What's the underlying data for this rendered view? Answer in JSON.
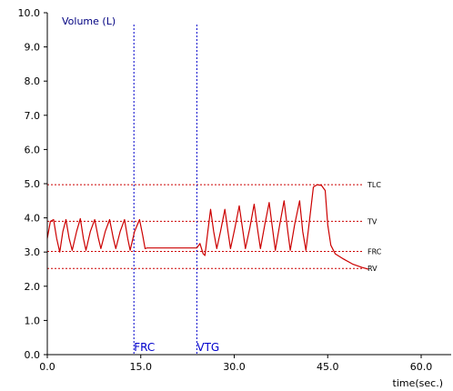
{
  "chart_data": {
    "type": "line",
    "title": "",
    "ylabel": "Volume (L)",
    "xlabel": "time(sec.)",
    "xlim": [
      0,
      65
    ],
    "ylim": [
      0,
      10
    ],
    "x_ticks": [
      "0.0",
      "15.0",
      "30.0",
      "45.0",
      "60.0"
    ],
    "x_tick_values": [
      0,
      15,
      30,
      45,
      60
    ],
    "y_ticks": [
      "0.0",
      "1.0",
      "2.0",
      "3.0",
      "4.0",
      "5.0",
      "6.0",
      "7.0",
      "8.0",
      "9.0",
      "10.0"
    ],
    "y_tick_values": [
      0,
      1,
      2,
      3,
      4,
      5,
      6,
      7,
      8,
      9,
      10
    ],
    "reference_lines": [
      {
        "label": "TLC",
        "y": 4.97
      },
      {
        "label": "TV",
        "y": 3.9
      },
      {
        "label": "FRC",
        "y": 3.02
      },
      {
        "label": "RV",
        "y": 2.52
      }
    ],
    "vertical_markers": [
      {
        "label": "FRC",
        "x": 13.9
      },
      {
        "label": "VTG",
        "x": 24.0
      }
    ],
    "series": [
      {
        "color": "#cc0000",
        "points": [
          [
            0.0,
            3.4
          ],
          [
            0.5,
            3.9
          ],
          [
            1.0,
            3.95
          ],
          [
            1.5,
            3.4
          ],
          [
            2.0,
            3.0
          ],
          [
            2.5,
            3.6
          ],
          [
            3.0,
            3.95
          ],
          [
            3.5,
            3.4
          ],
          [
            4.0,
            3.05
          ],
          [
            4.7,
            3.6
          ],
          [
            5.3,
            3.98
          ],
          [
            5.8,
            3.4
          ],
          [
            6.2,
            3.05
          ],
          [
            6.9,
            3.6
          ],
          [
            7.6,
            3.95
          ],
          [
            8.2,
            3.4
          ],
          [
            8.6,
            3.1
          ],
          [
            9.3,
            3.6
          ],
          [
            10.0,
            3.95
          ],
          [
            10.6,
            3.4
          ],
          [
            11.0,
            3.1
          ],
          [
            11.7,
            3.6
          ],
          [
            12.4,
            3.95
          ],
          [
            12.9,
            3.4
          ],
          [
            13.3,
            3.05
          ],
          [
            14.0,
            3.6
          ],
          [
            14.8,
            3.95
          ],
          [
            15.3,
            3.5
          ],
          [
            15.7,
            3.1
          ],
          [
            16.0,
            3.12
          ],
          [
            16.5,
            3.12
          ],
          [
            19.0,
            3.12
          ],
          [
            22.0,
            3.12
          ],
          [
            24.0,
            3.12
          ],
          [
            24.5,
            3.25
          ],
          [
            25.0,
            2.95
          ],
          [
            25.3,
            2.9
          ],
          [
            25.7,
            3.5
          ],
          [
            26.2,
            4.25
          ],
          [
            26.7,
            3.6
          ],
          [
            27.2,
            3.1
          ],
          [
            27.8,
            3.6
          ],
          [
            28.5,
            4.25
          ],
          [
            29.0,
            3.6
          ],
          [
            29.4,
            3.1
          ],
          [
            30.1,
            3.7
          ],
          [
            30.8,
            4.35
          ],
          [
            31.4,
            3.6
          ],
          [
            31.8,
            3.1
          ],
          [
            32.5,
            3.7
          ],
          [
            33.2,
            4.4
          ],
          [
            33.8,
            3.6
          ],
          [
            34.2,
            3.1
          ],
          [
            34.9,
            3.8
          ],
          [
            35.6,
            4.45
          ],
          [
            36.2,
            3.6
          ],
          [
            36.6,
            3.05
          ],
          [
            37.3,
            3.8
          ],
          [
            38.0,
            4.5
          ],
          [
            38.6,
            3.6
          ],
          [
            39.0,
            3.05
          ],
          [
            39.7,
            3.8
          ],
          [
            40.5,
            4.5
          ],
          [
            41.0,
            3.6
          ],
          [
            41.5,
            3.05
          ],
          [
            42.0,
            3.8
          ],
          [
            42.7,
            4.9
          ],
          [
            43.3,
            4.97
          ],
          [
            44.0,
            4.95
          ],
          [
            44.6,
            4.8
          ],
          [
            45.0,
            3.8
          ],
          [
            45.5,
            3.2
          ],
          [
            46.2,
            2.95
          ],
          [
            47.5,
            2.8
          ],
          [
            49.0,
            2.65
          ],
          [
            50.5,
            2.55
          ],
          [
            51.5,
            2.5
          ]
        ]
      }
    ]
  }
}
